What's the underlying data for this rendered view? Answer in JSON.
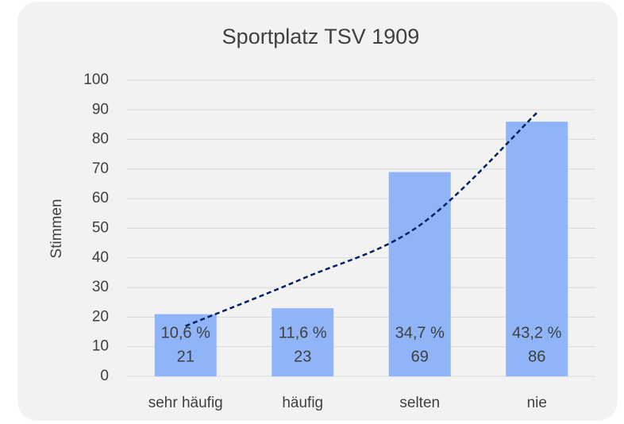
{
  "chart_data": {
    "type": "bar",
    "title": "Sportplatz TSV 1909",
    "y_label": "Stimmen",
    "categories": [
      "sehr häufig",
      "häufig",
      "selten",
      "nie"
    ],
    "values": [
      21,
      23,
      69,
      86
    ],
    "percent_labels": [
      "10,6 %",
      "11,6 %",
      "34,7 %",
      "43,2 %"
    ],
    "color": "#8fb4f7",
    "trendline": {
      "values": [
        17,
        33,
        51,
        89
      ],
      "color": "#002060",
      "dashed": true
    },
    "ylim": [
      0,
      100
    ],
    "yticks": [
      0,
      10,
      20,
      30,
      40,
      50,
      60,
      70,
      80,
      90,
      100
    ],
    "grid": true
  }
}
